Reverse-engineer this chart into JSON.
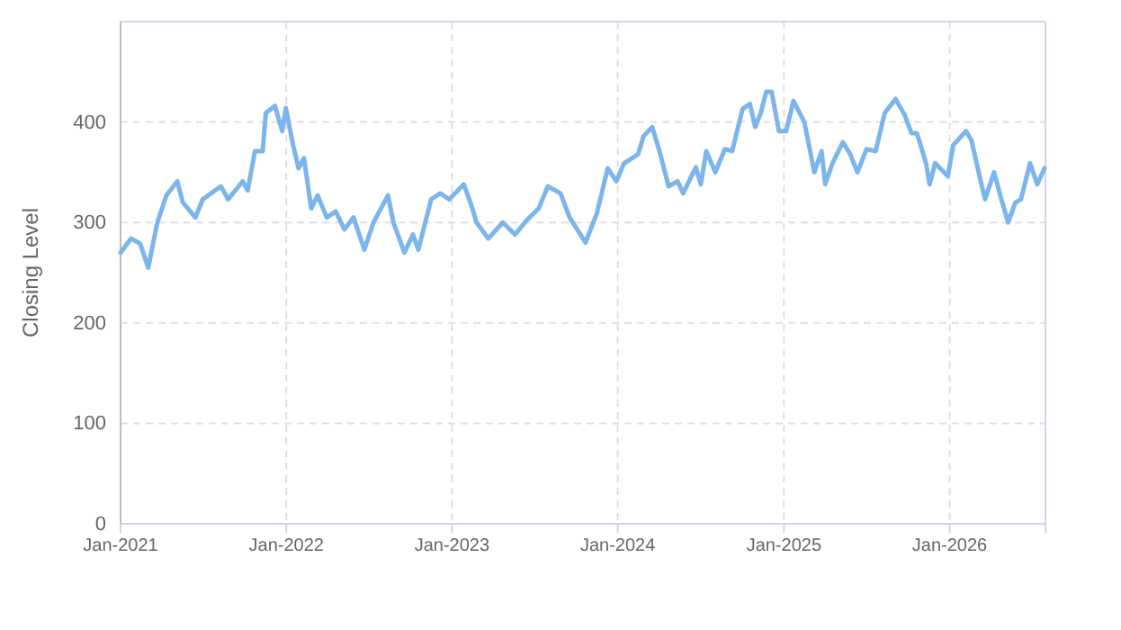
{
  "chart_data": {
    "type": "line",
    "ylabel": "Closing Level",
    "xlim": [
      "2021-01-01",
      "2026-07-31"
    ],
    "xticks": [
      {
        "value": "2021-01-01",
        "label": "Jan-2021"
      },
      {
        "value": "2022-01-01",
        "label": "Jan-2022"
      },
      {
        "value": "2023-01-01",
        "label": "Jan-2023"
      },
      {
        "value": "2024-01-01",
        "label": "Jan-2024"
      },
      {
        "value": "2025-01-01",
        "label": "Jan-2025"
      },
      {
        "value": "2026-01-01",
        "label": "Jan-2026"
      }
    ],
    "ylim": [
      0,
      500
    ],
    "yticks": [
      0,
      100,
      200,
      300,
      400
    ],
    "grid": true,
    "marker": "none",
    "line_style": "solid",
    "series": [
      {
        "color": "#7cb5ec",
        "x": [
          "2021-01-01",
          "2021-01-24",
          "2021-02-13",
          "2021-03-03",
          "2021-03-23",
          "2021-04-12",
          "2021-05-06",
          "2021-05-18",
          "2021-06-15",
          "2021-07-01",
          "2021-08-10",
          "2021-08-26",
          "2021-09-27",
          "2021-10-08",
          "2021-10-24",
          "2021-11-10",
          "2021-11-17",
          "2021-12-07",
          "2021-12-23",
          "2021-12-31",
          "2022-01-16",
          "2022-01-28",
          "2022-02-09",
          "2022-02-25",
          "2022-03-11",
          "2022-03-31",
          "2022-04-20",
          "2022-05-09",
          "2022-05-29",
          "2022-06-22",
          "2022-07-12",
          "2022-08-13",
          "2022-08-25",
          "2022-09-18",
          "2022-10-07",
          "2022-10-19",
          "2022-11-16",
          "2022-12-06",
          "2022-12-26",
          "2023-01-27",
          "2023-02-12",
          "2023-02-24",
          "2023-03-22",
          "2023-04-23",
          "2023-05-20",
          "2023-06-14",
          "2023-07-11",
          "2023-07-31",
          "2023-08-28",
          "2023-09-17",
          "2023-10-22",
          "2023-11-16",
          "2023-12-10",
          "2023-12-29",
          "2024-01-15",
          "2024-02-15",
          "2024-02-27",
          "2024-03-17",
          "2024-04-02",
          "2024-04-22",
          "2024-05-12",
          "2024-05-24",
          "2024-06-21",
          "2024-07-02",
          "2024-07-14",
          "2024-08-03",
          "2024-08-24",
          "2024-09-09",
          "2024-10-02",
          "2024-10-18",
          "2024-10-30",
          "2024-11-11",
          "2024-11-23",
          "2024-12-05",
          "2024-12-21",
          "2025-01-06",
          "2025-01-22",
          "2025-02-15",
          "2025-03-09",
          "2025-03-25",
          "2025-04-02",
          "2025-04-18",
          "2025-05-11",
          "2025-05-27",
          "2025-06-12",
          "2025-07-02",
          "2025-07-22",
          "2025-08-11",
          "2025-09-04",
          "2025-09-24",
          "2025-10-09",
          "2025-10-21",
          "2025-11-10",
          "2025-11-18",
          "2025-11-30",
          "2025-12-28",
          "2026-01-09",
          "2026-02-06",
          "2026-02-18",
          "2026-03-08",
          "2026-03-20",
          "2026-04-09",
          "2026-04-25",
          "2026-05-10",
          "2026-05-26",
          "2026-06-07",
          "2026-06-27",
          "2026-07-13",
          "2026-07-29"
        ],
        "values": [
          270,
          284,
          279,
          255,
          300,
          327,
          341,
          320,
          305,
          323,
          336,
          323,
          341,
          332,
          371,
          371,
          409,
          416,
          391,
          414,
          377,
          354,
          364,
          314,
          327,
          305,
          311,
          293,
          305,
          273,
          300,
          327,
          300,
          270,
          288,
          273,
          323,
          329,
          323,
          338,
          318,
          300,
          284,
          300,
          288,
          302,
          314,
          336,
          329,
          305,
          280,
          309,
          354,
          341,
          359,
          368,
          386,
          395,
          371,
          336,
          341,
          329,
          355,
          338,
          371,
          350,
          373,
          371,
          413,
          418,
          395,
          409,
          430,
          430,
          391,
          391,
          421,
          400,
          350,
          371,
          338,
          359,
          380,
          368,
          350,
          373,
          371,
          409,
          423,
          407,
          389,
          389,
          359,
          338,
          359,
          346,
          377,
          391,
          382,
          346,
          323,
          350,
          323,
          300,
          320,
          323,
          359,
          338,
          354
        ]
      }
    ]
  }
}
